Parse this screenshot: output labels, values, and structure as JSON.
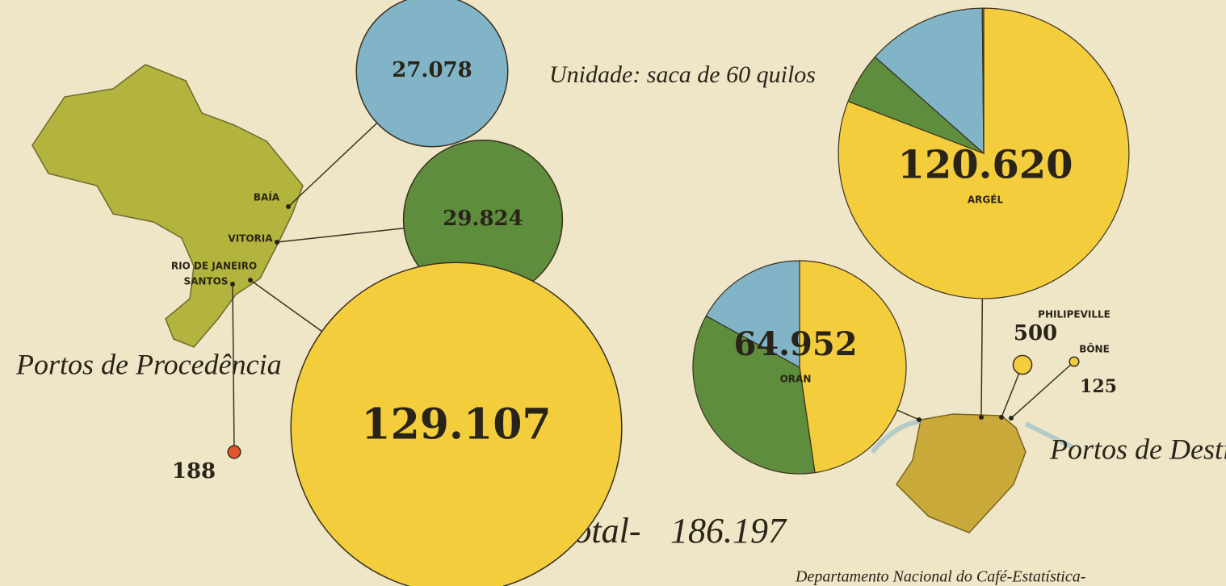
{
  "unit_note": "Unidade: saca de 60 quilos",
  "origin_title": "Portos de Procedência",
  "destination_title": "Portos de Destino",
  "total_label": "Total-",
  "total": {
    "value": 186197,
    "label": "186.197"
  },
  "source": "Departamento Nacional do Café-Estatística-",
  "origin_ports": [
    {
      "name": "BAÍA",
      "value": 27078,
      "value_label": "27.078",
      "color": "#80b4c6"
    },
    {
      "name": "VITORIA",
      "value": 29824,
      "value_label": "29.824",
      "color": "#5f8d3e"
    },
    {
      "name": "RIO DE JANEIRO",
      "value": 129107,
      "value_label": "129.107",
      "color": "#f3cd3c"
    },
    {
      "name": "SANTOS",
      "value": 188,
      "value_label": "188",
      "color": "#e0552a"
    }
  ],
  "destination_ports": [
    {
      "name": "ARGÉL",
      "value": 120620,
      "value_label": "120.620",
      "slices": [
        {
          "color": "#f3cd3c",
          "value": 97500
        },
        {
          "color": "#5f8d3e",
          "value": 6900
        },
        {
          "color": "#80b4c6",
          "value": 16032
        },
        {
          "color": "#e0552a",
          "value": 188
        }
      ]
    },
    {
      "name": "ORAN",
      "value": 64952,
      "value_label": "64.952",
      "slices": [
        {
          "color": "#f3cd3c",
          "value": 30982
        },
        {
          "color": "#5f8d3e",
          "value": 22924
        },
        {
          "color": "#80b4c6",
          "value": 11046
        }
      ]
    },
    {
      "name": "PHILIPEVILLE",
      "value": 500,
      "value_label": "500",
      "color": "#f3cd3c"
    },
    {
      "name": "BÔNE",
      "value": 125,
      "value_label": "125",
      "color": "#f3cd3c"
    }
  ]
}
